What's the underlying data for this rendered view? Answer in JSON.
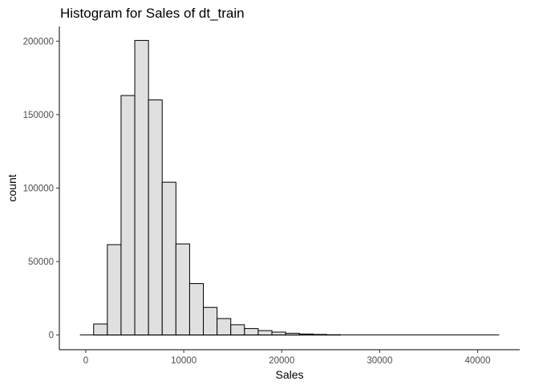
{
  "chart_data": {
    "type": "bar",
    "title": "Histogram for Sales of dt_train",
    "xlabel": "Sales",
    "ylabel": "count",
    "bin_width": 1400,
    "x_range": [
      -600,
      42200
    ],
    "xlim": [
      -2700,
      44300
    ],
    "ylim": [
      -10000,
      210000
    ],
    "x_ticks": [
      0,
      10000,
      20000,
      30000,
      40000
    ],
    "y_ticks": [
      0,
      50000,
      100000,
      150000,
      200000
    ],
    "x_tick_labels": [
      "0",
      "10000",
      "20000",
      "30000",
      "40000"
    ],
    "y_tick_labels": [
      "0",
      "50000",
      "100000",
      "150000",
      "200000"
    ],
    "bins": [
      {
        "x0": -600,
        "x1": 800,
        "count": 0
      },
      {
        "x0": 800,
        "x1": 2200,
        "count": 7500
      },
      {
        "x0": 2200,
        "x1": 3600,
        "count": 61500
      },
      {
        "x0": 3600,
        "x1": 5000,
        "count": 163000
      },
      {
        "x0": 5000,
        "x1": 6400,
        "count": 200500
      },
      {
        "x0": 6400,
        "x1": 7800,
        "count": 160000
      },
      {
        "x0": 7800,
        "x1": 9200,
        "count": 104000
      },
      {
        "x0": 9200,
        "x1": 10600,
        "count": 62000
      },
      {
        "x0": 10600,
        "x1": 12000,
        "count": 35000
      },
      {
        "x0": 12000,
        "x1": 13400,
        "count": 18800
      },
      {
        "x0": 13400,
        "x1": 14800,
        "count": 11200
      },
      {
        "x0": 14800,
        "x1": 16200,
        "count": 7000
      },
      {
        "x0": 16200,
        "x1": 17600,
        "count": 4400
      },
      {
        "x0": 17600,
        "x1": 19000,
        "count": 3000
      },
      {
        "x0": 19000,
        "x1": 20400,
        "count": 2000
      },
      {
        "x0": 20400,
        "x1": 21800,
        "count": 1200
      },
      {
        "x0": 21800,
        "x1": 23200,
        "count": 700
      },
      {
        "x0": 23200,
        "x1": 24600,
        "count": 400
      },
      {
        "x0": 24600,
        "x1": 26000,
        "count": 200
      }
    ],
    "bar_fill": "#e0e0e0",
    "bar_stroke": "#000000"
  }
}
